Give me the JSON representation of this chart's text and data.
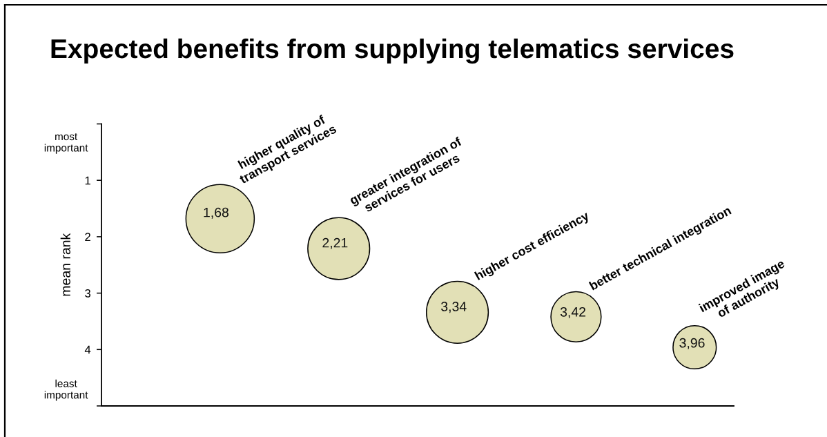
{
  "chart_data": {
    "type": "bubble",
    "title": "Expected benefits from supplying telematics services",
    "ylabel": "mean rank",
    "categories": [
      null,
      null,
      null,
      null,
      null
    ],
    "series": [
      {
        "name": "higher quality of\ntransport services",
        "color": "#e2e0b6",
        "values": [
          1.68,
          null,
          null,
          null,
          null
        ],
        "sizes": [
          1,
          null,
          null,
          null,
          null
        ],
        "value_labels": [
          "1,68",
          null,
          null,
          null,
          null
        ]
      },
      {
        "name": "greater integration of\nservices for users",
        "color": "#e2e0b6",
        "values": [
          null,
          2.21,
          null,
          null,
          null
        ],
        "sizes": [
          null,
          0.82,
          null,
          null,
          null
        ],
        "value_labels": [
          null,
          "2,21",
          null,
          null,
          null
        ]
      },
      {
        "name": "higher cost efficiency",
        "color": "#e2e0b6",
        "values": [
          null,
          null,
          3.34,
          null,
          null
        ],
        "sizes": [
          null,
          null,
          0.82,
          null,
          null
        ],
        "value_labels": [
          null,
          null,
          "3,34",
          null,
          null
        ]
      },
      {
        "name": "better technical integration",
        "color": "#e2e0b6",
        "values": [
          null,
          null,
          null,
          3.42,
          null
        ],
        "sizes": [
          null,
          null,
          null,
          0.54,
          null
        ],
        "value_labels": [
          null,
          null,
          null,
          "3,42",
          null
        ]
      },
      {
        "name": "improved image\nof authority",
        "color": "#e2e0b6",
        "values": [
          null,
          null,
          null,
          null,
          3.96
        ],
        "sizes": [
          null,
          null,
          null,
          null,
          0.4
        ],
        "value_labels": [
          null,
          null,
          null,
          null,
          "3,96"
        ]
      }
    ],
    "ylim": [
      5,
      0
    ],
    "yticks": [
      {
        "value": 0,
        "label": null
      },
      1,
      2,
      3,
      4,
      {
        "value": 5,
        "label": null
      }
    ],
    "annotations": [
      "most\nimportant",
      "least\nimportant"
    ],
    "tick_labels": "y"
  }
}
